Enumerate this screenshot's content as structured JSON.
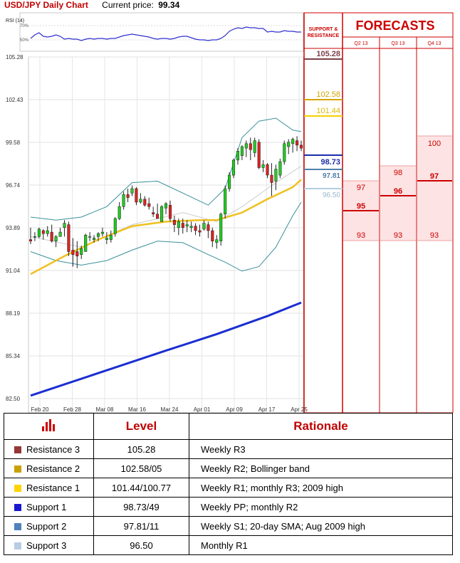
{
  "header": {
    "title": "USD/JPY Daily Chart",
    "price_label": "Current price:",
    "price_value": "99.34"
  },
  "panel": {
    "sr_title_line1": "SUPPORT &",
    "sr_title_line2": "RESISTANCE",
    "forecasts_title": "FORECASTS"
  },
  "chart_data": [
    {
      "type": "candlestick",
      "title": "USD/JPY Daily Chart",
      "y_ticks": [
        "105.28",
        "102.43",
        "99.58",
        "96.74",
        "93.89",
        "91.04",
        "88.19",
        "85.34",
        "82.50"
      ],
      "x_ticks": [
        "Feb 20",
        "Feb 28",
        "Mar 08",
        "Mar 16",
        "Mar 24",
        "Apr 01",
        "Apr 09",
        "Apr 17",
        "Apr 25"
      ],
      "ylim": [
        82.5,
        105.28
      ],
      "grid": true,
      "colors": {
        "up": "#22cc22",
        "down": "#dd2222",
        "bollinger": "#3a8f9a",
        "sma20": "#cccccc",
        "sma50": "#f0c020",
        "sma200": "#1a2ed0"
      },
      "candles": [
        [
          93.1,
          93.9,
          92.8,
          93.0
        ],
        [
          93.3,
          93.6,
          93.0,
          93.3
        ],
        [
          93.3,
          93.9,
          93.2,
          93.8
        ],
        [
          93.7,
          93.8,
          93.1,
          93.5
        ],
        [
          93.5,
          94.0,
          93.3,
          93.7
        ],
        [
          93.6,
          94.1,
          92.9,
          93.0
        ],
        [
          93.0,
          93.4,
          92.6,
          93.3
        ],
        [
          93.3,
          93.9,
          93.3,
          93.6
        ],
        [
          93.9,
          94.4,
          93.3,
          94.2
        ],
        [
          94.1,
          94.3,
          92.0,
          92.3
        ],
        [
          92.4,
          93.2,
          91.3,
          92.1
        ],
        [
          92.3,
          93.0,
          91.2,
          92.0
        ],
        [
          92.1,
          92.7,
          91.8,
          92.5
        ],
        [
          92.3,
          93.5,
          92.3,
          93.4
        ],
        [
          93.3,
          93.6,
          93.0,
          93.3
        ],
        [
          93.1,
          93.4,
          92.9,
          93.2
        ],
        [
          93.3,
          93.6,
          93.0,
          93.5
        ],
        [
          93.5,
          93.9,
          93.3,
          93.6
        ],
        [
          93.1,
          93.6,
          92.8,
          93.2
        ],
        [
          93.1,
          93.7,
          92.9,
          93.4
        ],
        [
          93.5,
          94.6,
          93.3,
          94.5
        ],
        [
          94.5,
          95.6,
          94.4,
          95.3
        ],
        [
          95.3,
          96.3,
          95.1,
          96.1
        ],
        [
          96.1,
          96.5,
          95.6,
          95.9
        ],
        [
          96.2,
          96.7,
          96.0,
          96.5
        ],
        [
          96.5,
          96.6,
          95.4,
          95.6
        ],
        [
          95.6,
          96.2,
          95.5,
          95.8
        ],
        [
          95.8,
          96.0,
          95.3,
          95.4
        ],
        [
          95.5,
          95.9,
          95.1,
          95.3
        ],
        [
          94.9,
          95.3,
          94.6,
          94.8
        ],
        [
          94.8,
          95.5,
          94.6,
          94.5
        ],
        [
          94.3,
          95.4,
          94.3,
          95.3
        ],
        [
          95.2,
          95.6,
          94.8,
          95.5
        ],
        [
          95.4,
          95.7,
          94.3,
          94.5
        ],
        [
          94.4,
          94.7,
          93.6,
          94.1
        ],
        [
          93.9,
          94.5,
          93.4,
          94.3
        ],
        [
          94.2,
          94.5,
          93.5,
          93.9
        ],
        [
          94.0,
          94.4,
          93.6,
          94.1
        ],
        [
          93.9,
          94.3,
          93.6,
          94.0
        ],
        [
          94.0,
          94.2,
          93.4,
          93.7
        ],
        [
          93.7,
          94.1,
          93.3,
          93.6
        ],
        [
          93.8,
          94.4,
          93.7,
          94.2
        ],
        [
          94.1,
          94.3,
          93.2,
          93.7
        ],
        [
          93.7,
          93.9,
          92.6,
          93.0
        ],
        [
          92.9,
          93.4,
          92.5,
          93.1
        ],
        [
          93.0,
          94.9,
          92.7,
          94.8
        ],
        [
          94.8,
          96.7,
          94.5,
          96.5
        ],
        [
          96.5,
          97.6,
          96.3,
          97.4
        ],
        [
          97.4,
          98.5,
          97.2,
          98.4
        ],
        [
          98.4,
          99.2,
          98.1,
          99.0
        ],
        [
          98.7,
          99.4,
          98.4,
          99.3
        ],
        [
          99.2,
          99.7,
          98.6,
          99.5
        ],
        [
          99.5,
          99.9,
          98.4,
          99.1
        ],
        [
          98.9,
          99.9,
          98.6,
          99.7
        ],
        [
          99.6,
          99.8,
          97.8,
          97.9
        ],
        [
          97.9,
          98.4,
          97.6,
          98.1
        ],
        [
          98.1,
          98.2,
          97.2,
          97.4
        ],
        [
          97.4,
          98.2,
          96.0,
          96.9
        ],
        [
          97.0,
          98.1,
          96.4,
          97.8
        ],
        [
          97.4,
          98.5,
          97.2,
          98.3
        ],
        [
          98.3,
          99.7,
          98.1,
          99.5
        ],
        [
          99.3,
          99.8,
          98.8,
          99.6
        ],
        [
          99.5,
          99.9,
          98.9,
          99.8
        ],
        [
          99.7,
          100.0,
          99.0,
          99.4
        ],
        [
          99.4,
          99.7,
          99.0,
          99.2
        ]
      ],
      "bollinger_upper": [
        [
          0,
          94.6
        ],
        [
          6,
          94.4
        ],
        [
          12,
          94.6
        ],
        [
          18,
          95.3
        ],
        [
          24,
          96.9
        ],
        [
          30,
          97.0
        ],
        [
          36,
          96.2
        ],
        [
          42,
          95.4
        ],
        [
          46,
          96.5
        ],
        [
          50,
          99.9
        ],
        [
          54,
          101.0
        ],
        [
          58,
          101.2
        ],
        [
          62,
          100.4
        ],
        [
          64,
          100.3
        ]
      ],
      "bollinger_lower": [
        [
          0,
          92.3
        ],
        [
          6,
          91.7
        ],
        [
          12,
          91.4
        ],
        [
          18,
          91.7
        ],
        [
          24,
          92.4
        ],
        [
          30,
          93.0
        ],
        [
          36,
          92.9
        ],
        [
          42,
          92.1
        ],
        [
          46,
          91.6
        ],
        [
          50,
          91.0
        ],
        [
          54,
          91.3
        ],
        [
          58,
          92.6
        ],
        [
          62,
          94.7
        ],
        [
          64,
          95.6
        ]
      ],
      "sma20": [
        [
          0,
          93.3
        ],
        [
          12,
          92.6
        ],
        [
          24,
          94.1
        ],
        [
          36,
          94.9
        ],
        [
          44,
          94.3
        ],
        [
          50,
          95.3
        ],
        [
          58,
          96.9
        ],
        [
          64,
          98.0
        ]
      ],
      "sma50": [
        [
          0,
          90.8
        ],
        [
          8,
          92.0
        ],
        [
          16,
          93.1
        ],
        [
          24,
          94.0
        ],
        [
          32,
          94.3
        ],
        [
          40,
          94.4
        ],
        [
          44,
          94.4
        ],
        [
          50,
          94.9
        ],
        [
          56,
          95.8
        ],
        [
          62,
          96.6
        ],
        [
          64,
          97.1
        ]
      ],
      "sma200": [
        [
          0,
          82.7
        ],
        [
          16,
          84.2
        ],
        [
          32,
          85.7
        ],
        [
          44,
          86.8
        ],
        [
          56,
          88.0
        ],
        [
          64,
          88.9
        ]
      ]
    },
    {
      "type": "rsi",
      "title": "RSI (14)",
      "y_ticks": [
        "70%",
        "50%"
      ],
      "values": [
        52,
        57,
        60,
        55,
        54,
        55,
        57,
        55,
        51,
        52,
        51,
        51,
        49,
        51,
        52,
        51,
        52,
        52,
        51,
        52,
        52,
        54,
        56,
        57,
        58,
        57,
        56,
        55,
        54,
        52,
        51,
        52,
        52,
        51,
        52,
        54,
        55,
        55,
        53,
        51,
        50,
        50,
        49,
        50,
        50,
        52,
        56,
        62,
        65,
        67,
        66,
        68,
        67,
        67,
        66,
        66,
        61,
        62,
        61,
        61,
        63,
        62,
        62,
        61,
        61
      ]
    }
  ],
  "levels": {
    "resistance3": {
      "value": "105.28",
      "color": "#7f3f4a"
    },
    "resistance2": {
      "value": "102.58",
      "color": "#d4a400"
    },
    "resistance1": {
      "value": "101.44",
      "color": "#f5d000"
    },
    "support1": {
      "value": "98.73",
      "color": "#1b2ea8"
    },
    "support2": {
      "value": "97.81",
      "color": "#4f7faa"
    },
    "support3": {
      "value": "96.50",
      "color": "#b3cfe0"
    }
  },
  "forecasts": {
    "columns": [
      {
        "label": "Q2 13",
        "high": "97",
        "mid": "95",
        "low": "93"
      },
      {
        "label": "Q3 13",
        "high": "98",
        "mid": "96",
        "low": "93"
      },
      {
        "label": "Q4 13",
        "high": "100",
        "mid": "97",
        "low": "93"
      }
    ]
  },
  "table": {
    "headers": {
      "level": "Level",
      "rationale": "Rationale"
    },
    "rows": [
      {
        "name": "Resistance 3",
        "color": "#953735",
        "level": "105.28",
        "rationale": "Weekly R3"
      },
      {
        "name": "Resistance 2",
        "color": "#c9a100",
        "level": "102.58/05",
        "rationale": "Weekly R2; Bollinger band"
      },
      {
        "name": "Resistance 1",
        "color": "#ffd400",
        "level": "101.44/100.77",
        "rationale": "Weekly R1; monthly R3; 2009 high"
      },
      {
        "name": "Support 1",
        "color": "#1a18d0",
        "level": "98.73/49",
        "rationale": "Weekly PP; monthly R2"
      },
      {
        "name": "Support 2",
        "color": "#4f81bd",
        "level": "97.81/11",
        "rationale": "Weekly S1; 20-day SMA; Aug 2009 high"
      },
      {
        "name": "Support 3",
        "color": "#b8cce4",
        "level": "96.50",
        "rationale": "Monthly R1"
      }
    ]
  }
}
